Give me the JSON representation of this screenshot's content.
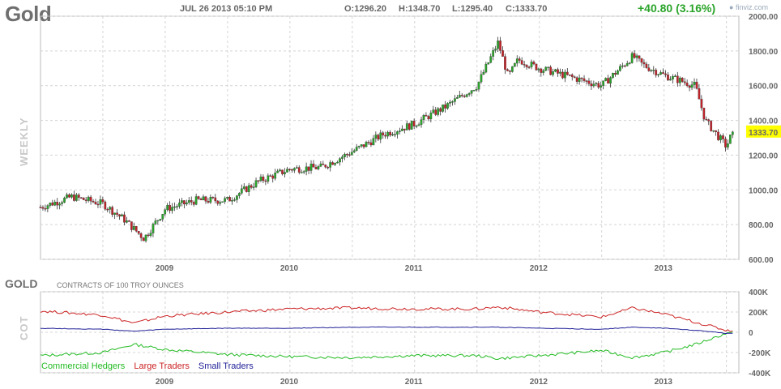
{
  "header": {
    "symbol": "Gold",
    "date": "JUL 26 2013 05:10 PM",
    "open": "O:1296.20",
    "high": "H:1348.70",
    "low": "L:1295.40",
    "close": "C:1333.70",
    "change": "+40.80 (3.16%)",
    "logo": "finviz.com"
  },
  "colors": {
    "up": "#2aa42a",
    "down": "#c0232a",
    "commercial": "#22bb22",
    "large": "#cc2222",
    "small": "#222299",
    "price_tag": "#ffff00"
  },
  "chart_data": [
    {
      "type": "candlestick",
      "title": "Gold",
      "timeframe": "WEEKLY",
      "x_tick_labels": [
        "2009",
        "2010",
        "2011",
        "2012",
        "2013"
      ],
      "y_tick_labels": [
        "600.00",
        "800.00",
        "1000.00",
        "1200.00",
        "1400.00",
        "1600.00",
        "1800.00",
        "2000.00"
      ],
      "ylim": [
        600,
        2000
      ],
      "last_price_label": "1333.70",
      "grid": true,
      "x": [
        "2008.0",
        "2008.25",
        "2008.5",
        "2008.67",
        "2008.83",
        "2009.0",
        "2009.25",
        "2009.5",
        "2009.75",
        "2010.0",
        "2010.25",
        "2010.5",
        "2010.75",
        "2011.0",
        "2011.25",
        "2011.5",
        "2011.67",
        "2011.75",
        "2011.83",
        "2012.0",
        "2012.25",
        "2012.5",
        "2012.75",
        "2012.83",
        "2013.0",
        "2013.25",
        "2013.33",
        "2013.5",
        "2013.55"
      ],
      "close": [
        900,
        960,
        920,
        830,
        720,
        890,
        940,
        940,
        1050,
        1120,
        1130,
        1220,
        1320,
        1380,
        1480,
        1600,
        1850,
        1650,
        1750,
        1700,
        1650,
        1600,
        1770,
        1720,
        1660,
        1600,
        1400,
        1250,
        1333.7
      ]
    },
    {
      "type": "line",
      "title": "GOLD",
      "subtitle": "CONTRACTS OF 100 TROY OUNCES",
      "side_label": "COT",
      "x_tick_labels": [
        "2009",
        "2010",
        "2011",
        "2012",
        "2013"
      ],
      "y_tick_labels": [
        "400K",
        "200K",
        "0",
        "-200K",
        "-400K"
      ],
      "ylim": [
        -400000,
        400000
      ],
      "x": [
        "2008.0",
        "2008.5",
        "2008.75",
        "2009.0",
        "2009.5",
        "2010.0",
        "2010.5",
        "2011.0",
        "2011.5",
        "2011.67",
        "2012.0",
        "2012.5",
        "2012.75",
        "2013.0",
        "2013.25",
        "2013.5"
      ],
      "series": [
        {
          "name": "Commercial Hedgers",
          "values": [
            -230000,
            -200000,
            -120000,
            -170000,
            -220000,
            -240000,
            -250000,
            -230000,
            -230000,
            -260000,
            -230000,
            -180000,
            -250000,
            -200000,
            -120000,
            -10000
          ]
        },
        {
          "name": "Large Traders",
          "values": [
            210000,
            170000,
            90000,
            160000,
            200000,
            230000,
            240000,
            230000,
            230000,
            250000,
            200000,
            150000,
            240000,
            180000,
            100000,
            20000
          ]
        },
        {
          "name": "Small Traders",
          "values": [
            40000,
            30000,
            10000,
            30000,
            40000,
            40000,
            50000,
            50000,
            50000,
            50000,
            40000,
            30000,
            50000,
            40000,
            20000,
            -10000
          ]
        }
      ]
    }
  ]
}
